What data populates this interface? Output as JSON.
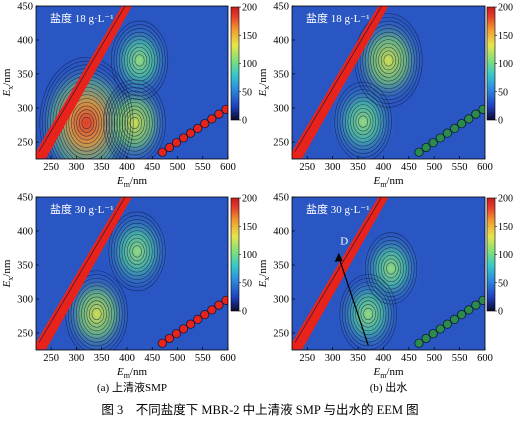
{
  "figure_caption": "图 3　不同盐度下 MBR-2 中上清液 SMP 与出水的 EEM 图",
  "colorbar": {
    "ticks": [
      0,
      50,
      100,
      150,
      200
    ],
    "range": [
      0,
      200
    ],
    "colors": [
      "#0a0a2a",
      "#1f3fbf",
      "#2d8fe0",
      "#35c9c9",
      "#7be07b",
      "#e6e64a",
      "#f29a2e",
      "#e63a2a",
      "#c41e1e"
    ]
  },
  "axes": {
    "x_label_main": "E",
    "x_label_sub": "m",
    "x_label_unit": "/nm",
    "y_label_main": "E",
    "y_label_sub": "x",
    "y_label_unit": "/nm",
    "x_ticks": [
      "250",
      "300",
      "350",
      "400",
      "450",
      "500",
      "550",
      "600"
    ],
    "y_ticks": [
      "250",
      "300",
      "350",
      "400",
      "450"
    ],
    "xlim": [
      220,
      600
    ],
    "ylim": [
      225,
      450
    ]
  },
  "chart_data": [
    {
      "type": "heatmap",
      "panel": "top-left",
      "salinity_label": "盐度 18 g·L⁻¹",
      "peaks": [
        {
          "ex": 278,
          "em": 320,
          "intensity": 200
        },
        {
          "ex": 278,
          "em": 415,
          "intensity": 90
        },
        {
          "ex": 370,
          "em": 425,
          "intensity": 70
        }
      ]
    },
    {
      "type": "heatmap",
      "panel": "top-right",
      "salinity_label": "盐度 18 g·L⁻¹",
      "peaks": [
        {
          "ex": 280,
          "em": 360,
          "intensity": 80
        },
        {
          "ex": 370,
          "em": 410,
          "intensity": 100
        }
      ]
    },
    {
      "type": "heatmap",
      "panel": "bottom-left",
      "salinity_label": "盐度 30 g·L⁻¹",
      "caption": "(a) 上清液SMP",
      "peaks": [
        {
          "ex": 278,
          "em": 340,
          "intensity": 85
        },
        {
          "ex": 370,
          "em": 420,
          "intensity": 80
        }
      ]
    },
    {
      "type": "heatmap",
      "panel": "bottom-right",
      "salinity_label": "盐度 30 g·L⁻¹",
      "caption": "(b) 出水",
      "annotation": "D",
      "peaks": [
        {
          "ex": 278,
          "em": 370,
          "intensity": 70
        },
        {
          "ex": 345,
          "em": 415,
          "intensity": 60
        }
      ]
    }
  ]
}
